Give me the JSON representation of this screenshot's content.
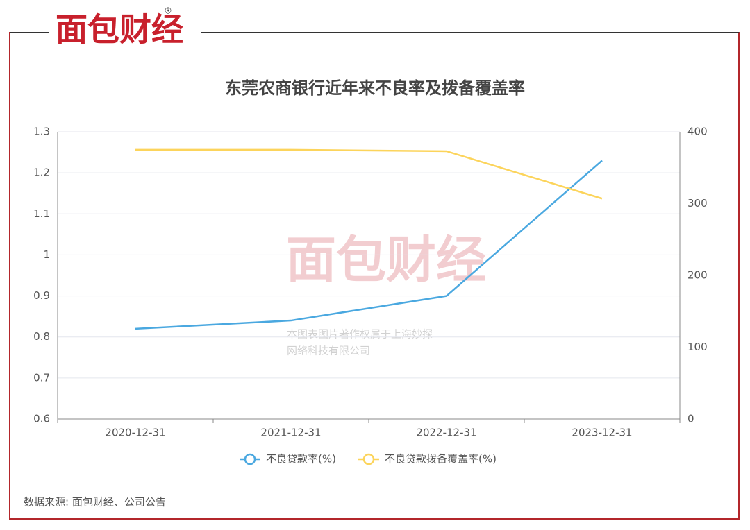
{
  "brand": "面包财经",
  "brand_mark": "®",
  "source": "数据来源: 面包财经、公司公告",
  "watermark": [
    "本图表图片著作权属于上海妙探",
    "网络科技有限公司"
  ],
  "chart_data": {
    "type": "line",
    "title": "东莞农商银行近年来不良率及拨备覆盖率",
    "categories": [
      "2020-12-31",
      "2021-12-31",
      "2022-12-31",
      "2023-12-31"
    ],
    "series": [
      {
        "name": "不良贷款率(%)",
        "color": "#4aa8e0",
        "values": [
          0.82,
          0.84,
          0.9,
          1.23
        ]
      },
      {
        "name": "不良贷款拨备覆盖率(%)",
        "color": "#fcd45b",
        "axis": "y2",
        "values": [
          375,
          375,
          373,
          307
        ]
      }
    ],
    "ylim": [
      0.6,
      1.3
    ],
    "yticks": [
      0.6,
      0.7,
      0.8,
      0.9,
      1,
      1.1,
      1.2,
      1.3
    ],
    "y2lim": [
      0,
      400
    ],
    "y2ticks": [
      0,
      100,
      200,
      300,
      400
    ],
    "grid": true,
    "legend": "bottom"
  }
}
